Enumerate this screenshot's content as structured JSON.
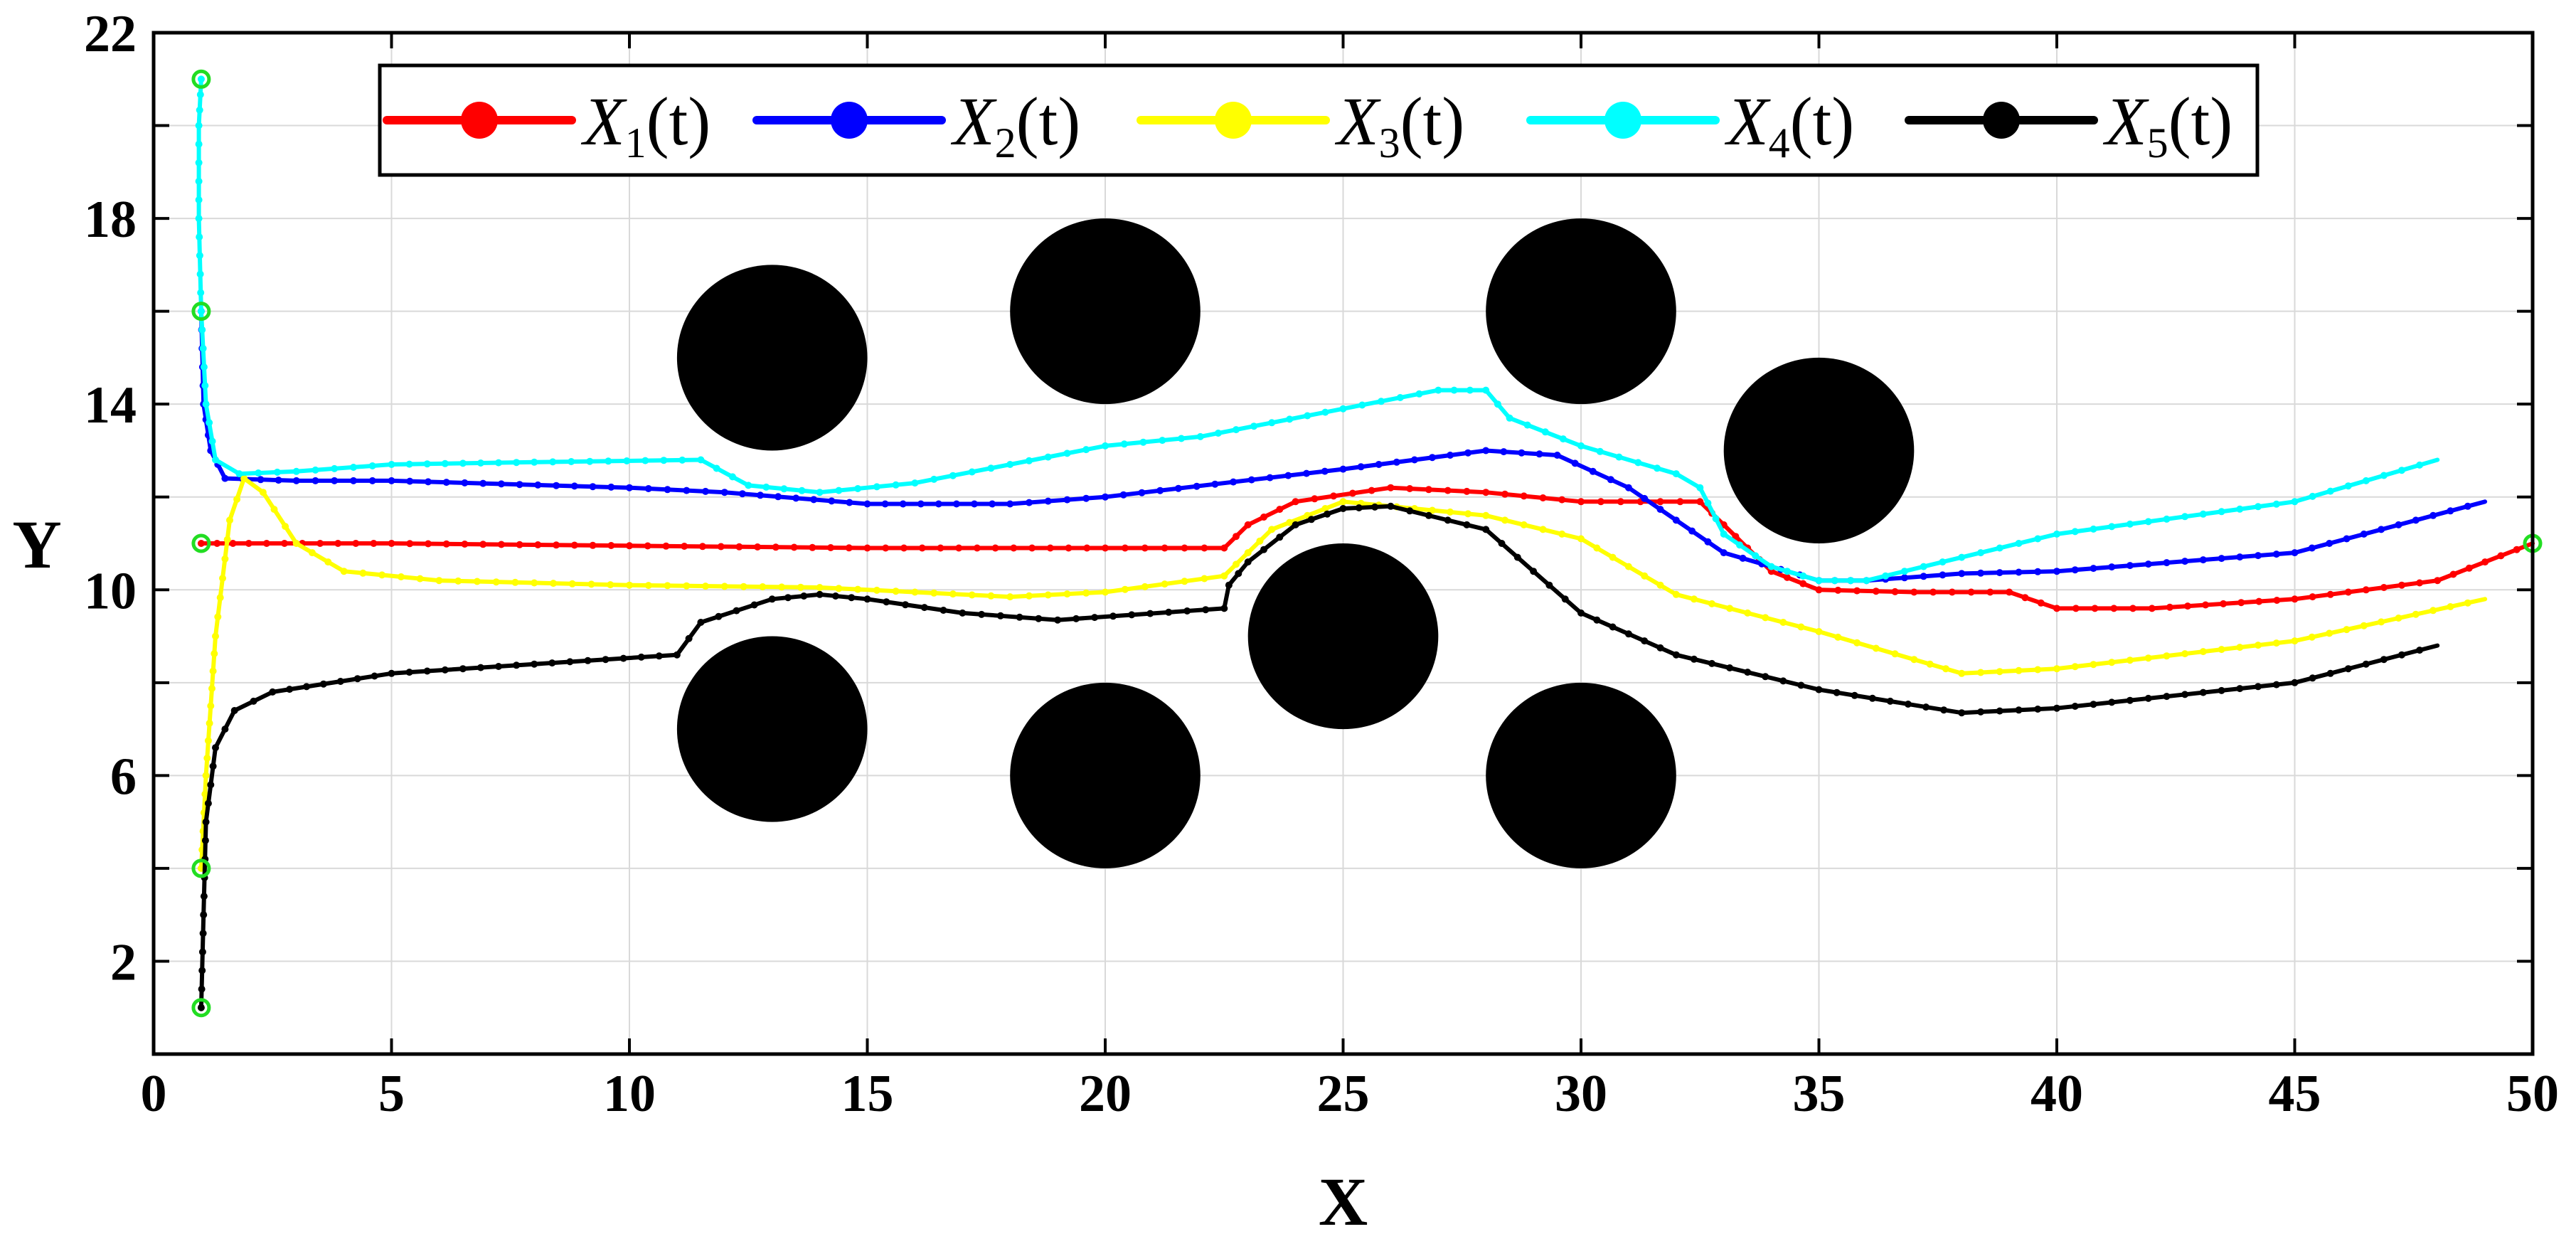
{
  "chart_data": {
    "type": "line",
    "xlabel": "X",
    "ylabel": "Y",
    "xlim": [
      0,
      50
    ],
    "ylim": [
      0,
      22
    ],
    "xticks": [
      0,
      5,
      10,
      15,
      20,
      25,
      30,
      35,
      40,
      45,
      50
    ],
    "yticks": [
      2,
      6,
      10,
      14,
      18,
      22
    ],
    "grid": true,
    "legend_position": "top",
    "obstacles": [
      {
        "cx": 13,
        "cy": 15,
        "r": 2
      },
      {
        "cx": 20,
        "cy": 16,
        "r": 2
      },
      {
        "cx": 30,
        "cy": 16,
        "r": 2
      },
      {
        "cx": 35,
        "cy": 13,
        "r": 2
      },
      {
        "cx": 25,
        "cy": 9,
        "r": 2
      },
      {
        "cx": 13,
        "cy": 7,
        "r": 2
      },
      {
        "cx": 20,
        "cy": 6,
        "r": 2
      },
      {
        "cx": 30,
        "cy": 6,
        "r": 2
      }
    ],
    "start_points": [
      [
        1,
        21
      ],
      [
        1,
        16
      ],
      [
        1,
        11
      ],
      [
        1,
        4
      ],
      [
        1,
        1
      ]
    ],
    "goal_point": [
      50,
      11
    ],
    "series": [
      {
        "name": "X",
        "subscript": "1",
        "suffix": "(t)",
        "color": "#ff0000",
        "points": [
          [
            1,
            11
          ],
          [
            2,
            11
          ],
          [
            5,
            11
          ],
          [
            10,
            10.95
          ],
          [
            15,
            10.9
          ],
          [
            20,
            10.9
          ],
          [
            22.5,
            10.9
          ],
          [
            23,
            11.4
          ],
          [
            24,
            11.9
          ],
          [
            26,
            12.2
          ],
          [
            28,
            12.1
          ],
          [
            30,
            11.9
          ],
          [
            32.5,
            11.9
          ],
          [
            33,
            11.4
          ],
          [
            34,
            10.4
          ],
          [
            35,
            10
          ],
          [
            37,
            9.95
          ],
          [
            39,
            9.95
          ],
          [
            40,
            9.6
          ],
          [
            42,
            9.6
          ],
          [
            45,
            9.8
          ],
          [
            48,
            10.2
          ],
          [
            50,
            11
          ]
        ]
      },
      {
        "name": "X",
        "subscript": "2",
        "suffix": "(t)",
        "color": "#0000ff",
        "points": [
          [
            1,
            16
          ],
          [
            1.05,
            14
          ],
          [
            1.2,
            13
          ],
          [
            1.5,
            12.4
          ],
          [
            3,
            12.35
          ],
          [
            5,
            12.35
          ],
          [
            10,
            12.2
          ],
          [
            12,
            12.1
          ],
          [
            15,
            11.85
          ],
          [
            18,
            11.85
          ],
          [
            20,
            12
          ],
          [
            25,
            12.6
          ],
          [
            28,
            13
          ],
          [
            29.5,
            12.9
          ],
          [
            31,
            12.2
          ],
          [
            32,
            11.5
          ],
          [
            33,
            10.8
          ],
          [
            35,
            10.2
          ],
          [
            36,
            10.2
          ],
          [
            38,
            10.35
          ],
          [
            40,
            10.4
          ],
          [
            45,
            10.8
          ],
          [
            49,
            11.9
          ]
        ]
      },
      {
        "name": "X",
        "subscript": "3",
        "suffix": "(t)",
        "color": "#ffff00",
        "points": [
          [
            1,
            4
          ],
          [
            1.1,
            6
          ],
          [
            1.3,
            9
          ],
          [
            1.6,
            11.5
          ],
          [
            1.9,
            12.4
          ],
          [
            2.3,
            12.1
          ],
          [
            3,
            11
          ],
          [
            4,
            10.4
          ],
          [
            6,
            10.2
          ],
          [
            10,
            10.1
          ],
          [
            14,
            10.05
          ],
          [
            18,
            9.85
          ],
          [
            20,
            9.95
          ],
          [
            22.5,
            10.3
          ],
          [
            23.5,
            11.3
          ],
          [
            25,
            11.9
          ],
          [
            28,
            11.6
          ],
          [
            30,
            11.1
          ],
          [
            32,
            9.9
          ],
          [
            35,
            9.1
          ],
          [
            37,
            8.5
          ],
          [
            38,
            8.2
          ],
          [
            40,
            8.3
          ],
          [
            45,
            8.9
          ],
          [
            49,
            9.8
          ]
        ]
      },
      {
        "name": "X",
        "subscript": "4",
        "suffix": "(t)",
        "color": "#00ffff",
        "points": [
          [
            1,
            21
          ],
          [
            0.95,
            20
          ],
          [
            0.95,
            18
          ],
          [
            1,
            16
          ],
          [
            1.1,
            14
          ],
          [
            1.3,
            12.8
          ],
          [
            1.8,
            12.5
          ],
          [
            3,
            12.55
          ],
          [
            5,
            12.7
          ],
          [
            8,
            12.75
          ],
          [
            11.5,
            12.8
          ],
          [
            12.5,
            12.25
          ],
          [
            14,
            12.1
          ],
          [
            16,
            12.3
          ],
          [
            20,
            13.1
          ],
          [
            22,
            13.3
          ],
          [
            25,
            13.9
          ],
          [
            27,
            14.3
          ],
          [
            28,
            14.3
          ],
          [
            28.5,
            13.7
          ],
          [
            30,
            13.1
          ],
          [
            32,
            12.5
          ],
          [
            32.5,
            12.2
          ],
          [
            33,
            11.2
          ],
          [
            34,
            10.5
          ],
          [
            35,
            10.2
          ],
          [
            36,
            10.2
          ],
          [
            38,
            10.7
          ],
          [
            40,
            11.2
          ],
          [
            45,
            11.9
          ],
          [
            48,
            12.8
          ]
        ]
      },
      {
        "name": "X",
        "subscript": "5",
        "suffix": "(t)",
        "color": "#000000",
        "points": [
          [
            1,
            1
          ],
          [
            1.05,
            3
          ],
          [
            1.1,
            5
          ],
          [
            1.3,
            6.6
          ],
          [
            1.7,
            7.4
          ],
          [
            2.5,
            7.8
          ],
          [
            5,
            8.2
          ],
          [
            8,
            8.4
          ],
          [
            11,
            8.6
          ],
          [
            11.5,
            9.3
          ],
          [
            13,
            9.8
          ],
          [
            14,
            9.9
          ],
          [
            15,
            9.8
          ],
          [
            17,
            9.5
          ],
          [
            19,
            9.35
          ],
          [
            22.5,
            9.6
          ],
          [
            22.6,
            10.1
          ],
          [
            23,
            10.6
          ],
          [
            24,
            11.4
          ],
          [
            25,
            11.75
          ],
          [
            26,
            11.8
          ],
          [
            28,
            11.3
          ],
          [
            29,
            10.4
          ],
          [
            30,
            9.5
          ],
          [
            32,
            8.6
          ],
          [
            35,
            7.85
          ],
          [
            38,
            7.35
          ],
          [
            40,
            7.45
          ],
          [
            45,
            8
          ],
          [
            48,
            8.8
          ]
        ]
      }
    ]
  }
}
